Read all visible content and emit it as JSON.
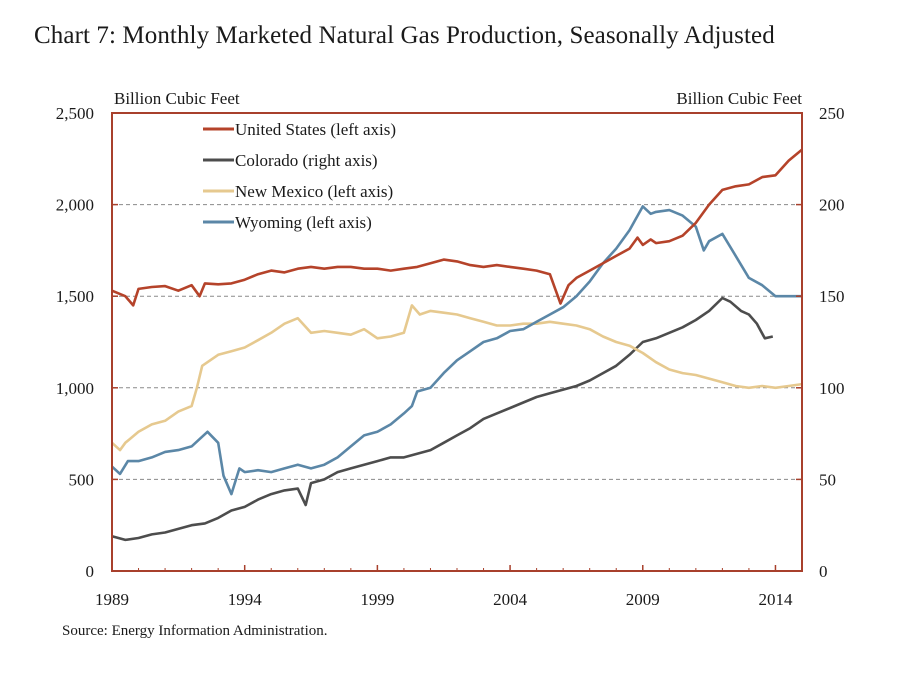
{
  "title": "Chart 7: Monthly Marketed Natural Gas Production, Seasonally Adjusted",
  "source": "Source: Energy Information Administration.",
  "chart_data": {
    "type": "line",
    "left_axis": {
      "label": "Billion Cubic Feet",
      "range": [
        0,
        2500
      ],
      "ticks": [
        0,
        500,
        1000,
        1500,
        2000,
        2500
      ],
      "tick_labels": [
        "0",
        "500",
        "1,000",
        "1,500",
        "2,000",
        "2,500"
      ]
    },
    "right_axis": {
      "label": "Billion Cubic Feet",
      "range": [
        0,
        250
      ],
      "ticks": [
        0,
        50,
        100,
        150,
        200,
        250
      ],
      "tick_labels": [
        "0",
        "50",
        "100",
        "150",
        "200",
        "250"
      ]
    },
    "x_axis": {
      "range": [
        1989,
        2015
      ],
      "ticks": [
        1989,
        1994,
        1999,
        2004,
        2009,
        2014
      ],
      "tick_labels": [
        "1989",
        "1994",
        "1999",
        "2004",
        "2009",
        "2014"
      ]
    },
    "grid": "horizontal dashed",
    "legend_position": "top-left",
    "series": [
      {
        "name": "United States (left axis)",
        "axis": "left",
        "color": "#b5432a",
        "points": [
          [
            1989.0,
            1530
          ],
          [
            1989.5,
            1500
          ],
          [
            1989.8,
            1450
          ],
          [
            1990.0,
            1540
          ],
          [
            1990.5,
            1550
          ],
          [
            1991.0,
            1555
          ],
          [
            1991.5,
            1530
          ],
          [
            1992.0,
            1560
          ],
          [
            1992.3,
            1500
          ],
          [
            1992.5,
            1570
          ],
          [
            1993.0,
            1565
          ],
          [
            1993.5,
            1570
          ],
          [
            1994.0,
            1590
          ],
          [
            1994.5,
            1620
          ],
          [
            1995.0,
            1640
          ],
          [
            1995.5,
            1630
          ],
          [
            1996.0,
            1650
          ],
          [
            1996.5,
            1660
          ],
          [
            1997.0,
            1650
          ],
          [
            1997.5,
            1660
          ],
          [
            1998.0,
            1660
          ],
          [
            1998.5,
            1650
          ],
          [
            1999.0,
            1650
          ],
          [
            1999.5,
            1640
          ],
          [
            2000.0,
            1650
          ],
          [
            2000.5,
            1660
          ],
          [
            2001.0,
            1680
          ],
          [
            2001.5,
            1700
          ],
          [
            2002.0,
            1690
          ],
          [
            2002.5,
            1670
          ],
          [
            2003.0,
            1660
          ],
          [
            2003.5,
            1670
          ],
          [
            2004.0,
            1660
          ],
          [
            2004.5,
            1650
          ],
          [
            2005.0,
            1640
          ],
          [
            2005.5,
            1620
          ],
          [
            2005.7,
            1540
          ],
          [
            2005.9,
            1460
          ],
          [
            2006.2,
            1560
          ],
          [
            2006.5,
            1600
          ],
          [
            2007.0,
            1640
          ],
          [
            2007.5,
            1680
          ],
          [
            2008.0,
            1720
          ],
          [
            2008.5,
            1760
          ],
          [
            2008.8,
            1820
          ],
          [
            2009.0,
            1780
          ],
          [
            2009.3,
            1810
          ],
          [
            2009.5,
            1790
          ],
          [
            2010.0,
            1800
          ],
          [
            2010.5,
            1830
          ],
          [
            2011.0,
            1900
          ],
          [
            2011.5,
            2000
          ],
          [
            2012.0,
            2080
          ],
          [
            2012.5,
            2100
          ],
          [
            2013.0,
            2110
          ],
          [
            2013.5,
            2150
          ],
          [
            2014.0,
            2160
          ],
          [
            2014.5,
            2240
          ],
          [
            2015.0,
            2300
          ]
        ]
      },
      {
        "name": "Colorado (right axis)",
        "axis": "right",
        "color": "#4d4d4d",
        "points": [
          [
            1989.0,
            19
          ],
          [
            1989.5,
            17
          ],
          [
            1990.0,
            18
          ],
          [
            1990.5,
            20
          ],
          [
            1991.0,
            21
          ],
          [
            1991.5,
            23
          ],
          [
            1992.0,
            25
          ],
          [
            1992.5,
            26
          ],
          [
            1993.0,
            29
          ],
          [
            1993.5,
            33
          ],
          [
            1994.0,
            35
          ],
          [
            1994.5,
            39
          ],
          [
            1995.0,
            42
          ],
          [
            1995.5,
            44
          ],
          [
            1996.0,
            45
          ],
          [
            1996.3,
            36
          ],
          [
            1996.5,
            48
          ],
          [
            1997.0,
            50
          ],
          [
            1997.5,
            54
          ],
          [
            1998.0,
            56
          ],
          [
            1998.5,
            58
          ],
          [
            1999.0,
            60
          ],
          [
            1999.5,
            62
          ],
          [
            2000.0,
            62
          ],
          [
            2000.5,
            64
          ],
          [
            2001.0,
            66
          ],
          [
            2001.5,
            70
          ],
          [
            2002.0,
            74
          ],
          [
            2002.5,
            78
          ],
          [
            2003.0,
            83
          ],
          [
            2003.5,
            86
          ],
          [
            2004.0,
            89
          ],
          [
            2004.5,
            92
          ],
          [
            2005.0,
            95
          ],
          [
            2005.5,
            97
          ],
          [
            2006.0,
            99
          ],
          [
            2006.5,
            101
          ],
          [
            2007.0,
            104
          ],
          [
            2007.5,
            108
          ],
          [
            2008.0,
            112
          ],
          [
            2008.5,
            118
          ],
          [
            2009.0,
            125
          ],
          [
            2009.5,
            127
          ],
          [
            2010.0,
            130
          ],
          [
            2010.5,
            133
          ],
          [
            2011.0,
            137
          ],
          [
            2011.5,
            142
          ],
          [
            2012.0,
            149
          ],
          [
            2012.3,
            147
          ],
          [
            2012.7,
            142
          ],
          [
            2013.0,
            140
          ],
          [
            2013.3,
            135
          ],
          [
            2013.6,
            127
          ],
          [
            2013.9,
            128
          ]
        ]
      },
      {
        "name": "New Mexico (left axis)",
        "axis": "left",
        "color": "#e6c98f",
        "points": [
          [
            1989.0,
            700
          ],
          [
            1989.3,
            660
          ],
          [
            1989.5,
            700
          ],
          [
            1990.0,
            760
          ],
          [
            1990.5,
            800
          ],
          [
            1991.0,
            820
          ],
          [
            1991.5,
            870
          ],
          [
            1992.0,
            900
          ],
          [
            1992.2,
            1000
          ],
          [
            1992.4,
            1120
          ],
          [
            1993.0,
            1180
          ],
          [
            1993.5,
            1200
          ],
          [
            1994.0,
            1220
          ],
          [
            1994.5,
            1260
          ],
          [
            1995.0,
            1300
          ],
          [
            1995.5,
            1350
          ],
          [
            1996.0,
            1380
          ],
          [
            1996.5,
            1300
          ],
          [
            1997.0,
            1310
          ],
          [
            1997.5,
            1300
          ],
          [
            1998.0,
            1290
          ],
          [
            1998.5,
            1320
          ],
          [
            1999.0,
            1270
          ],
          [
            1999.5,
            1280
          ],
          [
            2000.0,
            1300
          ],
          [
            2000.3,
            1450
          ],
          [
            2000.6,
            1400
          ],
          [
            2001.0,
            1420
          ],
          [
            2001.5,
            1410
          ],
          [
            2002.0,
            1400
          ],
          [
            2002.5,
            1380
          ],
          [
            2003.0,
            1360
          ],
          [
            2003.5,
            1340
          ],
          [
            2004.0,
            1340
          ],
          [
            2004.5,
            1350
          ],
          [
            2005.0,
            1350
          ],
          [
            2005.5,
            1360
          ],
          [
            2006.0,
            1350
          ],
          [
            2006.5,
            1340
          ],
          [
            2007.0,
            1320
          ],
          [
            2007.5,
            1280
          ],
          [
            2008.0,
            1250
          ],
          [
            2008.5,
            1230
          ],
          [
            2009.0,
            1190
          ],
          [
            2009.5,
            1140
          ],
          [
            2010.0,
            1100
          ],
          [
            2010.5,
            1080
          ],
          [
            2011.0,
            1070
          ],
          [
            2011.5,
            1050
          ],
          [
            2012.0,
            1030
          ],
          [
            2012.5,
            1010
          ],
          [
            2013.0,
            1000
          ],
          [
            2013.5,
            1010
          ],
          [
            2014.0,
            1000
          ],
          [
            2014.5,
            1010
          ],
          [
            2015.0,
            1020
          ]
        ]
      },
      {
        "name": "Wyoming (left axis)",
        "axis": "left",
        "color": "#5b87a7",
        "points": [
          [
            1989.0,
            570
          ],
          [
            1989.3,
            530
          ],
          [
            1989.6,
            600
          ],
          [
            1990.0,
            600
          ],
          [
            1990.5,
            620
          ],
          [
            1991.0,
            650
          ],
          [
            1991.5,
            660
          ],
          [
            1992.0,
            680
          ],
          [
            1992.3,
            720
          ],
          [
            1992.6,
            760
          ],
          [
            1993.0,
            700
          ],
          [
            1993.2,
            520
          ],
          [
            1993.5,
            420
          ],
          [
            1993.8,
            560
          ],
          [
            1994.0,
            540
          ],
          [
            1994.5,
            550
          ],
          [
            1995.0,
            540
          ],
          [
            1995.5,
            560
          ],
          [
            1996.0,
            580
          ],
          [
            1996.5,
            560
          ],
          [
            1997.0,
            580
          ],
          [
            1997.5,
            620
          ],
          [
            1998.0,
            680
          ],
          [
            1998.5,
            740
          ],
          [
            1999.0,
            760
          ],
          [
            1999.5,
            800
          ],
          [
            2000.0,
            860
          ],
          [
            2000.3,
            900
          ],
          [
            2000.5,
            980
          ],
          [
            2001.0,
            1000
          ],
          [
            2001.5,
            1080
          ],
          [
            2002.0,
            1150
          ],
          [
            2002.5,
            1200
          ],
          [
            2003.0,
            1250
          ],
          [
            2003.5,
            1270
          ],
          [
            2004.0,
            1310
          ],
          [
            2004.5,
            1320
          ],
          [
            2005.0,
            1360
          ],
          [
            2005.5,
            1400
          ],
          [
            2006.0,
            1440
          ],
          [
            2006.5,
            1500
          ],
          [
            2007.0,
            1580
          ],
          [
            2007.5,
            1680
          ],
          [
            2008.0,
            1760
          ],
          [
            2008.5,
            1860
          ],
          [
            2009.0,
            1990
          ],
          [
            2009.3,
            1950
          ],
          [
            2009.5,
            1960
          ],
          [
            2010.0,
            1970
          ],
          [
            2010.5,
            1940
          ],
          [
            2011.0,
            1880
          ],
          [
            2011.3,
            1750
          ],
          [
            2011.5,
            1800
          ],
          [
            2012.0,
            1840
          ],
          [
            2012.5,
            1720
          ],
          [
            2013.0,
            1600
          ],
          [
            2013.5,
            1560
          ],
          [
            2014.0,
            1500
          ],
          [
            2014.5,
            1500
          ],
          [
            2015.0,
            1500
          ]
        ]
      }
    ]
  }
}
